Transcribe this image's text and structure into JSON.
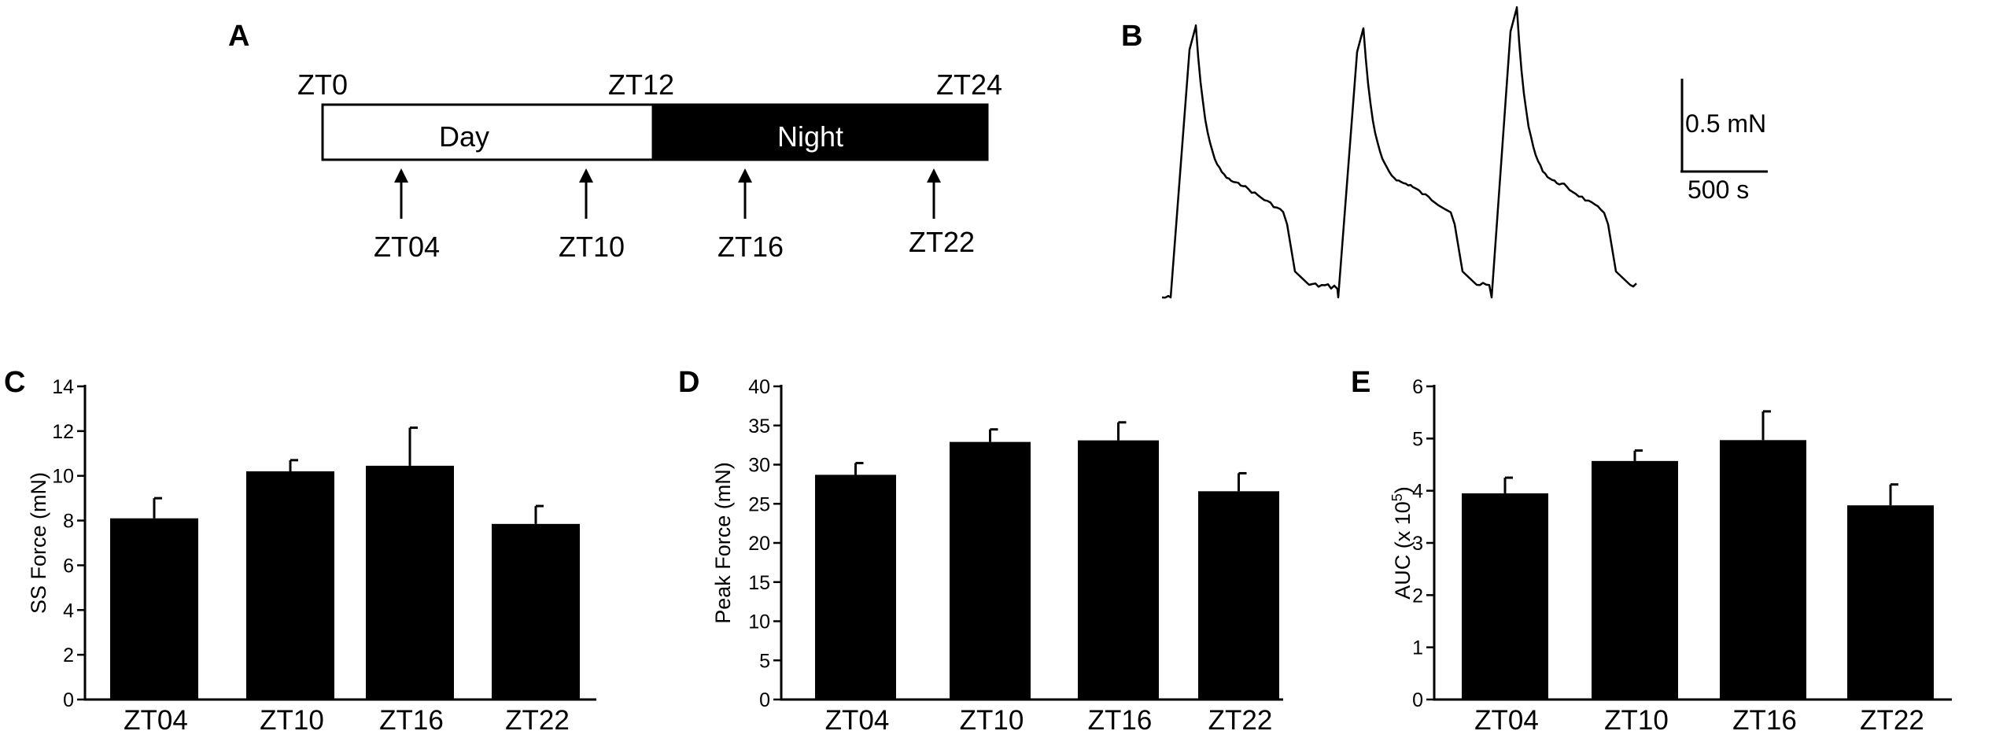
{
  "panels": {
    "a": {
      "letter": "A",
      "zt_top": [
        "ZT0",
        "ZT12",
        "ZT24"
      ],
      "day_label": "Day",
      "night_label": "Night",
      "arrows": [
        "ZT04",
        "ZT10",
        "ZT16",
        "ZT22"
      ]
    },
    "b": {
      "letter": "B",
      "scale_y_label": "0.5 mN",
      "scale_x_label": "500 s",
      "trace_pulses": 3
    }
  },
  "chart_data": [
    {
      "type": "bar",
      "panel": "C",
      "categories": [
        "ZT04",
        "ZT10",
        "ZT16",
        "ZT22"
      ],
      "values": [
        8.1,
        10.2,
        10.45,
        7.85
      ],
      "errors": [
        0.9,
        0.5,
        1.7,
        0.8
      ],
      "ylabel": "SS Force (mN)",
      "ylim": [
        0,
        14
      ],
      "yticks": [
        0,
        2,
        4,
        6,
        8,
        10,
        12,
        14
      ],
      "bar_color": "#000000"
    },
    {
      "type": "bar",
      "panel": "D",
      "categories": [
        "ZT04",
        "ZT10",
        "ZT16",
        "ZT22"
      ],
      "values": [
        28.7,
        32.9,
        33.1,
        26.6
      ],
      "errors": [
        1.5,
        1.6,
        2.3,
        2.3
      ],
      "ylabel": "Peak Force (mN)",
      "ylim": [
        0,
        40
      ],
      "yticks": [
        0,
        5,
        10,
        15,
        20,
        25,
        30,
        35,
        40
      ],
      "bar_color": "#000000"
    },
    {
      "type": "bar",
      "panel": "E",
      "categories": [
        "ZT04",
        "ZT10",
        "ZT16",
        "ZT22"
      ],
      "values": [
        3.95,
        4.57,
        4.97,
        3.72
      ],
      "errors": [
        0.3,
        0.2,
        0.55,
        0.4
      ],
      "ylabel": "AUC (x 10",
      "ylabel_exp": "5",
      "ylabel_close": ")",
      "ylim": [
        0,
        6
      ],
      "yticks": [
        0,
        1,
        2,
        3,
        4,
        5,
        6
      ],
      "bar_color": "#000000"
    }
  ]
}
